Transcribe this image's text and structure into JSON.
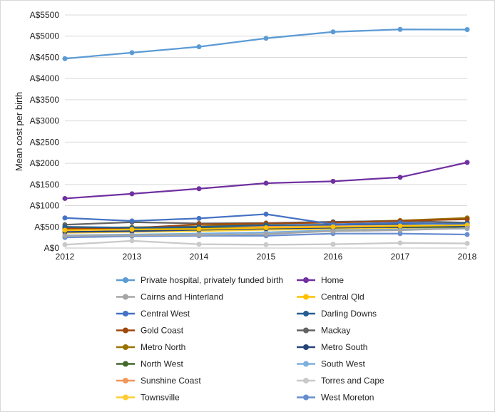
{
  "chart_data": {
    "type": "line",
    "xlabel": "",
    "ylabel": "Mean cost per birth",
    "x": [
      2012,
      2013,
      2014,
      2015,
      2016,
      2017,
      2018
    ],
    "ylim": [
      0,
      5500
    ],
    "yticks": [
      "A$0",
      "A$500",
      "A$1000",
      "A$1500",
      "A$2000",
      "A$2500",
      "A$3000",
      "A$3500",
      "A$4000",
      "A$4500",
      "A$5000",
      "A$5500"
    ],
    "grid": "horizontal",
    "legend_position": "bottom",
    "series": [
      {
        "name": "Private hospital, privately funded birth",
        "color": "#5b9bd5",
        "values": [
          4470,
          4610,
          4750,
          4950,
          5100,
          5160,
          5155
        ]
      },
      {
        "name": "Home",
        "color": "#7030a0",
        "values": [
          1170,
          1280,
          1400,
          1530,
          1575,
          1670,
          2020
        ]
      },
      {
        "name": "Cairns and Hinterland",
        "color": "#a5a5a5",
        "values": [
          290,
          300,
          310,
          330,
          400,
          420,
          470
        ]
      },
      {
        "name": "Central Qld",
        "color": "#ffc000",
        "values": [
          420,
          440,
          450,
          480,
          500,
          520,
          540
        ]
      },
      {
        "name": "Central West",
        "color": "#4472c4",
        "values": [
          710,
          640,
          700,
          800,
          560,
          600,
          560
        ]
      },
      {
        "name": "Darling Downs",
        "color": "#255e91",
        "values": [
          500,
          480,
          500,
          540,
          550,
          570,
          580
        ]
      },
      {
        "name": "Gold Coast",
        "color": "#9e480e",
        "values": [
          460,
          470,
          560,
          580,
          600,
          640,
          680
        ]
      },
      {
        "name": "Mackay",
        "color": "#636363",
        "values": [
          550,
          610,
          580,
          590,
          620,
          640,
          600
        ]
      },
      {
        "name": "Metro North",
        "color": "#997300",
        "values": [
          470,
          490,
          510,
          580,
          610,
          650,
          710
        ]
      },
      {
        "name": "Metro South",
        "color": "#264478",
        "values": [
          380,
          400,
          430,
          460,
          480,
          500,
          520
        ]
      },
      {
        "name": "North West",
        "color": "#43682b",
        "values": [
          480,
          450,
          470,
          480,
          500,
          490,
          500
        ]
      },
      {
        "name": "South West",
        "color": "#7cafdd",
        "values": [
          300,
          320,
          340,
          370,
          420,
          440,
          460
        ]
      },
      {
        "name": "Sunshine Coast",
        "color": "#f1975a",
        "values": [
          440,
          460,
          490,
          520,
          540,
          560,
          600
        ]
      },
      {
        "name": "Torres and Cape",
        "color": "#c9c9c9",
        "values": [
          80,
          170,
          90,
          80,
          90,
          120,
          110
        ]
      },
      {
        "name": "Townsville",
        "color": "#ffcd33",
        "values": [
          360,
          380,
          400,
          430,
          450,
          470,
          490
        ]
      },
      {
        "name": "West Moreton",
        "color": "#698ed0",
        "values": [
          250,
          280,
          290,
          290,
          340,
          340,
          320
        ]
      }
    ]
  }
}
